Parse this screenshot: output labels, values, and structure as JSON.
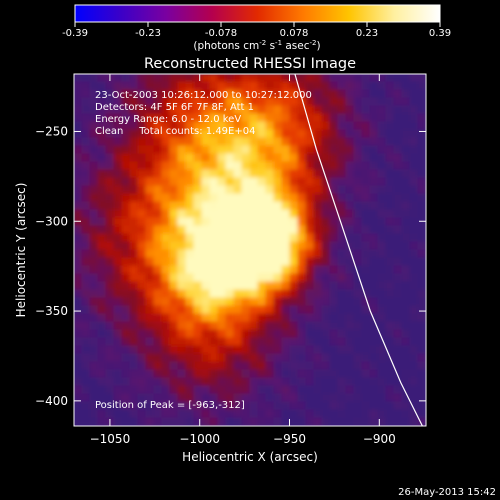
{
  "chart_data": {
    "type": "heatmap",
    "title": "Reconstructed RHESSI Image",
    "xlabel": "Heliocentric X (arcsec)",
    "ylabel": "Heliocentric Y (arcsec)",
    "xlim": [
      -1070,
      -874
    ],
    "ylim": [
      -414,
      -218
    ],
    "xticks": [
      -1050,
      -1000,
      -950,
      -900
    ],
    "yticks": [
      -250,
      -300,
      -350,
      -400
    ],
    "colorbar": {
      "label_main": "(photons cm",
      "label_sup1": "-2",
      "label_mid1": " s",
      "label_sup2": "-1",
      "label_mid2": " asec",
      "label_sup3": "-2",
      "label_end": ")",
      "min": -0.39,
      "max": 0.39,
      "ticks": [
        "-0.39",
        "-0.23",
        "-0.078",
        "0.078",
        "0.23",
        "0.39"
      ],
      "colors": [
        "#0000ff",
        "#3b00c8",
        "#7a00a0",
        "#b4004e",
        "#e22a00",
        "#ff7a00",
        "#ffc400",
        "#fff0a0",
        "#ffffff"
      ]
    },
    "info_lines": [
      "23-Oct-2003 10:26:12.000 to 10:27:12.000",
      "Detectors: 4F 5F 6F 7F 8F, Att 1",
      "Energy Range: 6.0 - 12.0 keV",
      "Clean     Total counts: 1.49E+04"
    ],
    "peak_label": "Position of Peak = [-963,-312]",
    "peak": {
      "x": -963,
      "y": -312
    },
    "limb_curve": [
      {
        "x": -947,
        "y": -218
      },
      {
        "x": -935,
        "y": -260
      },
      {
        "x": -920,
        "y": -305
      },
      {
        "x": -905,
        "y": -350
      },
      {
        "x": -888,
        "y": -390
      },
      {
        "x": -876,
        "y": -414
      }
    ]
  },
  "timestamp": "26-May-2013 15:42"
}
